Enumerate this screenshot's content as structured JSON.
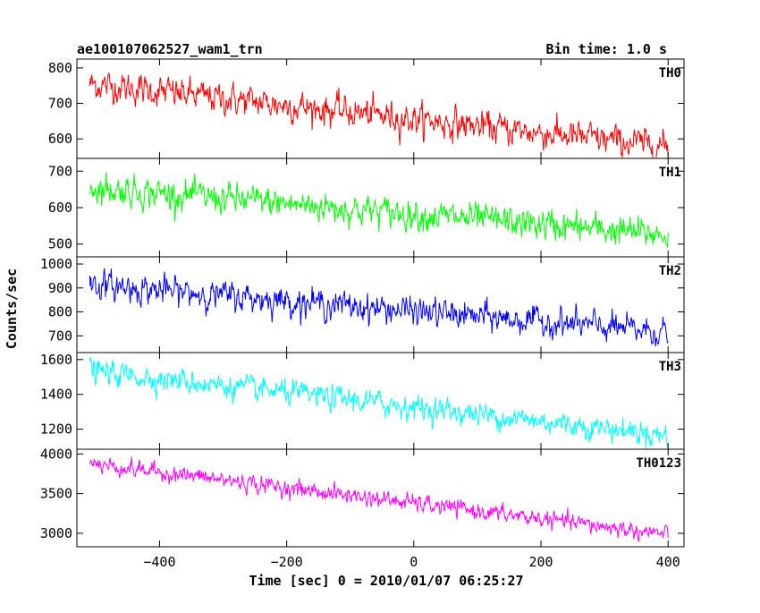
{
  "header": {
    "left_title": "ae100107062527_wam1_trn",
    "right_title": "Bin time: 1.0 s"
  },
  "axes": {
    "xlabel": "Time [sec] 0 = 2010/01/07 06:25:27",
    "ylabel": "Counts/sec"
  },
  "chart_data": {
    "type": "line",
    "title": "ae100107062527_wam1_trn",
    "subtitle": "Bin time: 1.0 s",
    "xlabel": "Time [sec] 0 = 2010/01/07 06:25:27",
    "ylabel": "Counts/sec",
    "xlim": [
      -530,
      425
    ],
    "x_ticks": [
      -400,
      -200,
      0,
      200,
      400
    ],
    "x_tick_labels": [
      "−400",
      "−200",
      "0",
      "200",
      "400"
    ],
    "x_data_range": [
      -510,
      400
    ],
    "bin_time_s": 1.0,
    "grid": false,
    "legend": "none",
    "panels": [
      {
        "name": "TH0",
        "color": "#ff0000",
        "ylim": [
          545,
          825
        ],
        "y_ticks": [
          600,
          700,
          800
        ],
        "y_tick_labels": [
          "600",
          "700",
          "800"
        ],
        "trend_start": 755,
        "trend_end": 578,
        "noise_sd": 28
      },
      {
        "name": "TH1",
        "color": "#00ff00",
        "ylim": [
          465,
          735
        ],
        "y_ticks": [
          500,
          600,
          700
        ],
        "y_tick_labels": [
          "500",
          "600",
          "700"
        ],
        "trend_start": 655,
        "trend_end": 525,
        "noise_sd": 27
      },
      {
        "name": "TH2",
        "color": "#0000ff",
        "ylim": [
          630,
          1030
        ],
        "y_ticks": [
          700,
          800,
          900,
          1000
        ],
        "y_tick_labels": [
          "700",
          "800",
          "900",
          "1000"
        ],
        "trend_start": 915,
        "trend_end": 715,
        "noise_sd": 38
      },
      {
        "name": "TH3",
        "color": "#00ffff",
        "ylim": [
          1085,
          1640
        ],
        "y_ticks": [
          1200,
          1400,
          1600
        ],
        "y_tick_labels": [
          "1200",
          "1400",
          "1600"
        ],
        "trend_start": 1535,
        "trend_end": 1165,
        "noise_sd": 45
      },
      {
        "name": "TH0123",
        "color": "#ff00ff",
        "ylim": [
          2830,
          4060
        ],
        "y_ticks": [
          3000,
          3500,
          4000
        ],
        "y_tick_labels": [
          "3000",
          "3500",
          "4000"
        ],
        "trend_start": 3880,
        "trend_end": 2985,
        "noise_sd": 70
      }
    ]
  }
}
